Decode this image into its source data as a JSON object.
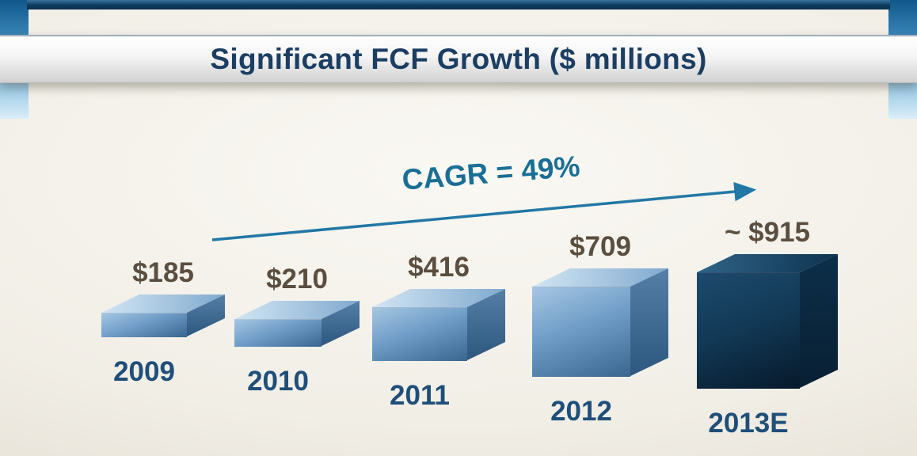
{
  "slide": {
    "title": "Significant FCF Growth ($ millions)"
  },
  "chart_data": {
    "type": "bar",
    "title": "Significant FCF Growth ($ millions)",
    "unit": "$ millions",
    "categories": [
      "2009",
      "2010",
      "2011",
      "2012",
      "2013E"
    ],
    "values": [
      185,
      210,
      416,
      709,
      915
    ],
    "value_labels": [
      "$185",
      "$210",
      "$416",
      "$709",
      "~ $915"
    ],
    "annotation": "CAGR = 49%",
    "ylim": [
      0,
      1000
    ],
    "grid": false,
    "legend": "none",
    "style": "3d-boxes-increasing",
    "colors": {
      "title": "#1c3e63",
      "value_label": "#5a4e40",
      "category_label": "#1f4e79",
      "annotation": "#1a6f96",
      "arrow": "#2278a5",
      "bar_front_light": "#a6c6e2",
      "bar_front": "#6f9dc8",
      "bar_front_dark": "#38668f",
      "bar_top_light": "#d3e6f4",
      "bar_top_dark": "#7fa9ce",
      "bar_side_light": "#557fa7",
      "bar_side": "#2c577f",
      "final_front_light": "#1e4a6c",
      "final_front": "#123a57",
      "final_front_dark": "#07192b",
      "final_top_light": "#2f6488",
      "final_top_dark": "#0e3350",
      "final_side_light": "#0d2f4a",
      "final_side": "#081f33"
    }
  }
}
